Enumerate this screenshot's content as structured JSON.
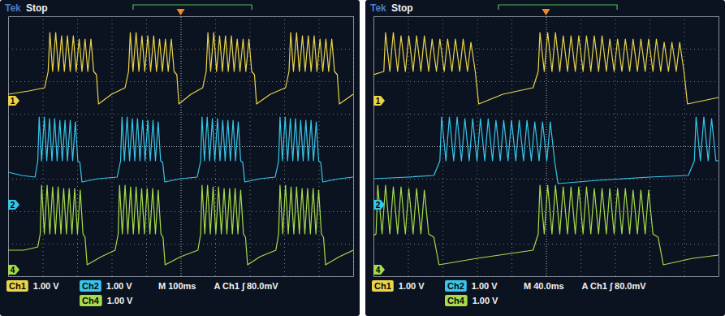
{
  "chart_data": [
    {
      "type": "line",
      "logo": "Tek",
      "title": "Stop",
      "annotations": [
        "M 100ms",
        "A Ch1 ∫ 80.0mV"
      ],
      "xlim": [
        0,
        1000
      ],
      "xticks": [
        0,
        100,
        200,
        300,
        400,
        500,
        600,
        700,
        800,
        900,
        1000
      ],
      "ylim": [
        -4,
        4
      ],
      "yticks": [
        -4,
        -3,
        -2,
        -1,
        0,
        1,
        2,
        3,
        4
      ],
      "grid": true,
      "tick_labels": false,
      "series": [
        {
          "name": "Ch1",
          "scale": "1.00 V",
          "ground_label": "1",
          "ground": 1.4,
          "color": "#e9d44c",
          "x": [
            0,
            60,
            106,
            116,
            121,
            129,
            138,
            146,
            155,
            163,
            172,
            180,
            189,
            197,
            206,
            214,
            223,
            231,
            240,
            248,
            256,
            262,
            300,
            339,
            349,
            354,
            362,
            371,
            379,
            388,
            396,
            405,
            413,
            422,
            430,
            439,
            447,
            456,
            464,
            473,
            481,
            489,
            495,
            530,
            564,
            574,
            579,
            587,
            596,
            604,
            613,
            621,
            630,
            638,
            647,
            655,
            664,
            672,
            681,
            689,
            698,
            706,
            714,
            720,
            760,
            804,
            814,
            819,
            827,
            836,
            844,
            853,
            861,
            870,
            878,
            887,
            895,
            904,
            912,
            921,
            929,
            938,
            946,
            954,
            960,
            1000
          ],
          "values": [
            1.6,
            1.7,
            1.8,
            2.3,
            3.5,
            2.3,
            3.5,
            2.3,
            3.4,
            2.3,
            3.4,
            2.3,
            3.4,
            2.3,
            3.3,
            2.3,
            3.3,
            2.3,
            3.3,
            2.3,
            2.2,
            1.3,
            1.6,
            1.8,
            2.3,
            3.5,
            2.3,
            3.5,
            2.3,
            3.4,
            2.3,
            3.4,
            2.3,
            3.4,
            2.3,
            3.3,
            2.3,
            3.3,
            2.3,
            3.3,
            2.3,
            2.2,
            1.3,
            1.6,
            1.8,
            2.3,
            3.5,
            2.3,
            3.5,
            2.3,
            3.4,
            2.3,
            3.4,
            2.3,
            3.4,
            2.3,
            3.3,
            2.3,
            3.3,
            2.3,
            3.3,
            2.3,
            2.2,
            1.3,
            1.6,
            1.8,
            2.3,
            3.5,
            2.3,
            3.5,
            2.3,
            3.4,
            2.3,
            3.4,
            2.3,
            3.4,
            2.3,
            3.3,
            2.3,
            3.3,
            2.3,
            3.3,
            2.3,
            2.2,
            1.3,
            1.6
          ]
        },
        {
          "name": "Ch2",
          "scale": "1.00 V",
          "ground_label": "2",
          "ground": -1.8,
          "color": "#38c6ea",
          "x": [
            0,
            40,
            78,
            86,
            90,
            97,
            105,
            112,
            120,
            127,
            135,
            142,
            150,
            157,
            165,
            172,
            180,
            187,
            195,
            202,
            208,
            214,
            260,
            316,
            326,
            330,
            337,
            345,
            352,
            360,
            367,
            375,
            382,
            390,
            397,
            405,
            412,
            420,
            427,
            435,
            442,
            448,
            454,
            500,
            548,
            558,
            562,
            569,
            577,
            584,
            592,
            599,
            607,
            614,
            622,
            629,
            637,
            644,
            652,
            659,
            667,
            674,
            680,
            686,
            730,
            774,
            784,
            788,
            795,
            803,
            810,
            818,
            825,
            833,
            840,
            848,
            855,
            863,
            870,
            878,
            885,
            893,
            900,
            906,
            912,
            960,
            1000
          ],
          "values": [
            -0.8,
            -0.9,
            -0.95,
            -0.45,
            0.9,
            -0.45,
            0.9,
            -0.45,
            0.85,
            -0.45,
            0.85,
            -0.45,
            0.8,
            -0.45,
            0.8,
            -0.45,
            0.8,
            -0.45,
            0.75,
            -0.45,
            -0.5,
            -1.1,
            -1.0,
            -0.95,
            -0.45,
            0.9,
            -0.45,
            0.9,
            -0.45,
            0.85,
            -0.45,
            0.85,
            -0.45,
            0.8,
            -0.45,
            0.8,
            -0.45,
            0.8,
            -0.45,
            0.75,
            -0.45,
            -0.5,
            -1.1,
            -1.0,
            -0.95,
            -0.45,
            0.9,
            -0.45,
            0.9,
            -0.45,
            0.85,
            -0.45,
            0.85,
            -0.45,
            0.8,
            -0.45,
            0.8,
            -0.45,
            0.8,
            -0.45,
            0.75,
            -0.45,
            -0.5,
            -1.1,
            -1.0,
            -0.95,
            -0.45,
            0.9,
            -0.45,
            0.9,
            -0.45,
            0.85,
            -0.45,
            0.85,
            -0.45,
            0.8,
            -0.45,
            0.8,
            -0.45,
            0.8,
            -0.45,
            0.75,
            -0.45,
            -0.5,
            -1.1,
            -1.0,
            -0.95
          ]
        },
        {
          "name": "Ch4",
          "scale": "1.00 V",
          "ground_label": "4",
          "ground": -3.8,
          "color": "#a6dc4a",
          "x": [
            0,
            45,
            86,
            93,
            97,
            105,
            113,
            121,
            129,
            137,
            145,
            153,
            161,
            169,
            177,
            185,
            193,
            201,
            209,
            217,
            223,
            229,
            270,
            310,
            319,
            323,
            331,
            339,
            347,
            355,
            363,
            371,
            379,
            387,
            395,
            403,
            411,
            419,
            427,
            435,
            443,
            449,
            455,
            500,
            550,
            558,
            562,
            570,
            578,
            586,
            594,
            602,
            610,
            618,
            626,
            634,
            642,
            650,
            658,
            666,
            674,
            682,
            688,
            694,
            730,
            776,
            784,
            788,
            796,
            804,
            812,
            820,
            828,
            836,
            844,
            852,
            860,
            868,
            876,
            884,
            892,
            900,
            908,
            914,
            920,
            960,
            1000
          ],
          "values": [
            -3.2,
            -3.2,
            -3.1,
            -2.7,
            -1.2,
            -2.7,
            -1.2,
            -2.7,
            -1.25,
            -2.7,
            -1.25,
            -2.7,
            -1.3,
            -2.7,
            -1.3,
            -2.7,
            -1.3,
            -2.7,
            -1.35,
            -2.7,
            -2.8,
            -3.65,
            -3.4,
            -3.2,
            -2.7,
            -1.2,
            -2.7,
            -1.2,
            -2.7,
            -1.25,
            -2.7,
            -1.25,
            -2.7,
            -1.3,
            -2.7,
            -1.3,
            -2.7,
            -1.3,
            -2.7,
            -1.35,
            -2.7,
            -2.8,
            -3.65,
            -3.4,
            -3.2,
            -2.7,
            -1.2,
            -2.7,
            -1.2,
            -2.7,
            -1.25,
            -2.7,
            -1.25,
            -2.7,
            -1.3,
            -2.7,
            -1.3,
            -2.7,
            -1.3,
            -2.7,
            -1.35,
            -2.7,
            -2.8,
            -3.65,
            -3.4,
            -3.2,
            -2.7,
            -1.2,
            -2.7,
            -1.2,
            -2.7,
            -1.25,
            -2.7,
            -1.25,
            -2.7,
            -1.3,
            -2.7,
            -1.3,
            -2.7,
            -1.3,
            -2.7,
            -1.35,
            -2.7,
            -2.8,
            -3.65,
            -3.4,
            -3.2
          ]
        }
      ]
    },
    {
      "type": "line",
      "logo": "Tek",
      "title": "Stop",
      "annotations": [
        "M 40.0ms",
        "A Ch1 ∫ 80.0mV"
      ],
      "xlim": [
        0,
        400
      ],
      "xticks": [
        0,
        40,
        80,
        120,
        160,
        200,
        240,
        280,
        320,
        360,
        400
      ],
      "ylim": [
        -4,
        4
      ],
      "yticks": [
        -4,
        -3,
        -2,
        -1,
        0,
        1,
        2,
        3,
        4
      ],
      "grid": true,
      "tick_labels": false,
      "series": [
        {
          "name": "Ch1",
          "scale": "1.00 V",
          "ground_label": "1",
          "ground": 1.4,
          "color": "#e9d44c",
          "x": [
            0,
            12,
            14,
            19,
            23,
            28,
            32,
            37,
            41,
            46,
            50,
            55,
            59,
            64,
            68,
            73,
            77,
            82,
            86,
            91,
            95,
            100,
            104,
            109,
            113,
            118,
            122,
            150,
            185,
            191,
            193,
            198,
            202,
            207,
            211,
            216,
            220,
            225,
            229,
            234,
            238,
            243,
            247,
            252,
            256,
            261,
            265,
            270,
            274,
            279,
            283,
            288,
            292,
            297,
            301,
            306,
            310,
            315,
            319,
            324,
            328,
            333,
            337,
            342,
            346,
            351,
            355,
            360,
            364,
            400
          ],
          "values": [
            2.2,
            2.3,
            3.5,
            2.3,
            3.5,
            2.3,
            3.4,
            2.3,
            3.4,
            2.3,
            3.4,
            2.3,
            3.4,
            2.3,
            3.3,
            2.3,
            3.3,
            2.3,
            3.3,
            2.3,
            3.3,
            2.3,
            3.3,
            2.3,
            3.2,
            2.3,
            1.3,
            1.6,
            1.8,
            2.3,
            3.5,
            2.3,
            3.5,
            2.3,
            3.5,
            2.3,
            3.4,
            2.3,
            3.4,
            2.3,
            3.4,
            2.3,
            3.4,
            2.3,
            3.4,
            2.3,
            3.4,
            2.3,
            3.3,
            2.3,
            3.3,
            2.3,
            3.3,
            2.3,
            3.3,
            2.3,
            3.3,
            2.3,
            3.3,
            2.3,
            3.3,
            2.3,
            3.2,
            2.3,
            3.2,
            2.3,
            3.2,
            2.3,
            1.3,
            1.5
          ]
        },
        {
          "name": "Ch2",
          "scale": "1.00 V",
          "ground_label": "2",
          "ground": -1.8,
          "color": "#38c6ea",
          "x": [
            0,
            40,
            70,
            77,
            79,
            84,
            88,
            93,
            97,
            102,
            106,
            111,
            115,
            120,
            124,
            129,
            133,
            138,
            142,
            147,
            151,
            156,
            160,
            165,
            169,
            174,
            178,
            183,
            187,
            192,
            196,
            201,
            205,
            210,
            214,
            260,
            320,
            365,
            372,
            374,
            379,
            383,
            388,
            392,
            397,
            400
          ],
          "values": [
            -1.0,
            -0.95,
            -0.9,
            -0.45,
            0.9,
            -0.45,
            0.9,
            -0.45,
            0.9,
            -0.45,
            0.85,
            -0.45,
            0.85,
            -0.45,
            0.85,
            -0.45,
            0.85,
            -0.45,
            0.8,
            -0.45,
            0.8,
            -0.45,
            0.8,
            -0.45,
            0.8,
            -0.45,
            0.8,
            -0.45,
            0.75,
            -0.45,
            0.75,
            -0.45,
            0.75,
            -0.45,
            -1.15,
            -1.05,
            -0.95,
            -0.9,
            -0.45,
            0.9,
            -0.45,
            0.9,
            -0.45,
            0.85,
            -0.45,
            -0.45
          ]
        },
        {
          "name": "Ch4",
          "scale": "1.00 V",
          "ground_label": "4",
          "ground": -3.8,
          "color": "#a6dc4a",
          "x": [
            0,
            3,
            5,
            10,
            14,
            19,
            23,
            28,
            32,
            37,
            41,
            46,
            50,
            55,
            59,
            64,
            70,
            76,
            120,
            185,
            191,
            193,
            198,
            202,
            207,
            211,
            216,
            220,
            225,
            229,
            234,
            238,
            243,
            247,
            252,
            256,
            261,
            265,
            270,
            274,
            279,
            283,
            288,
            292,
            297,
            301,
            306,
            310,
            315,
            319,
            324,
            330,
            336,
            370,
            400
          ],
          "values": [
            -2.75,
            -2.7,
            -1.2,
            -2.7,
            -1.2,
            -2.7,
            -1.25,
            -2.7,
            -1.25,
            -2.7,
            -1.3,
            -2.7,
            -1.3,
            -2.7,
            -1.35,
            -2.7,
            -2.8,
            -3.65,
            -3.45,
            -3.2,
            -2.7,
            -1.2,
            -2.7,
            -1.2,
            -2.7,
            -1.2,
            -2.7,
            -1.25,
            -2.7,
            -1.25,
            -2.7,
            -1.25,
            -2.7,
            -1.25,
            -2.7,
            -1.3,
            -2.7,
            -1.3,
            -2.7,
            -1.3,
            -2.7,
            -1.3,
            -2.7,
            -1.3,
            -2.7,
            -1.35,
            -2.7,
            -1.35,
            -2.7,
            -1.35,
            -2.7,
            -2.8,
            -3.65,
            -3.45,
            -3.35
          ]
        }
      ]
    }
  ]
}
